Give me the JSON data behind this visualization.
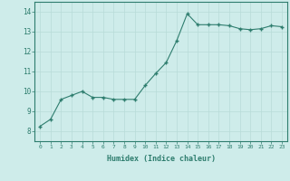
{
  "x": [
    0,
    1,
    2,
    3,
    4,
    5,
    6,
    7,
    8,
    9,
    10,
    11,
    12,
    13,
    14,
    15,
    16,
    17,
    18,
    19,
    20,
    21,
    22,
    23
  ],
  "y": [
    8.25,
    8.6,
    9.6,
    9.8,
    10.0,
    9.7,
    9.7,
    9.6,
    9.6,
    9.6,
    10.3,
    10.9,
    11.45,
    12.55,
    13.9,
    13.35,
    13.35,
    13.35,
    13.3,
    13.15,
    13.1,
    13.15,
    13.3,
    13.25
  ],
  "xlabel": "Humidex (Indice chaleur)",
  "ylim": [
    7.5,
    14.5
  ],
  "xlim": [
    -0.5,
    23.5
  ],
  "yticks": [
    8,
    9,
    10,
    11,
    12,
    13,
    14
  ],
  "xticks": [
    0,
    1,
    2,
    3,
    4,
    5,
    6,
    7,
    8,
    9,
    10,
    11,
    12,
    13,
    14,
    15,
    16,
    17,
    18,
    19,
    20,
    21,
    22,
    23
  ],
  "line_color": "#2e7d6e",
  "marker": "+",
  "marker_size": 3.5,
  "bg_color": "#ceecea",
  "grid_color": "#b8dbd8",
  "axis_bg": "#ceecea",
  "tick_label_color": "#2e7d6e",
  "xlabel_fontsize": 6.0,
  "ytick_fontsize": 5.5,
  "xtick_fontsize": 4.5
}
